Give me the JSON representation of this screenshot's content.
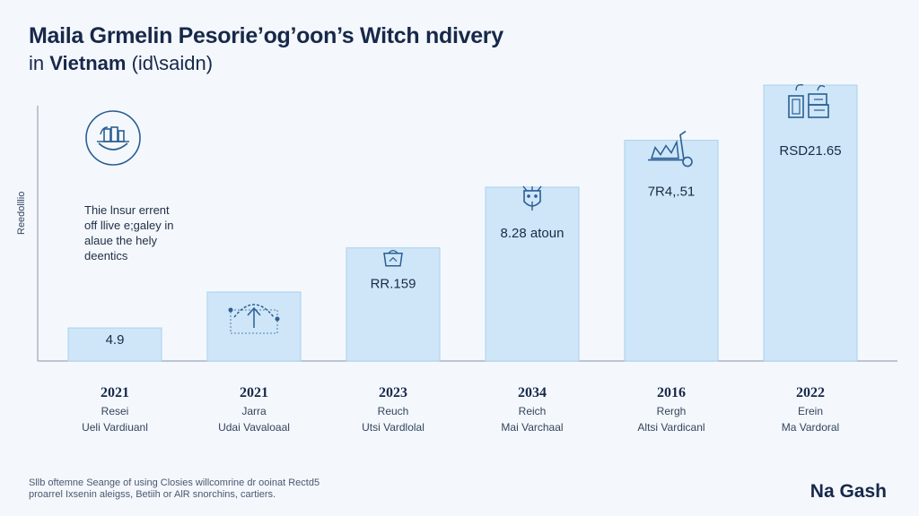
{
  "title": "Maila Grmelin Pesorie’og’oon’s Witch ndivery",
  "subtitle_prefix": "in",
  "subtitle_bold": "Vietnam",
  "subtitle_suffix": "(id\\saidn)",
  "ylabel": "Reedolllio",
  "annotation": {
    "icon": "basket-icon",
    "lines": [
      "Thie lnsur errent",
      "off llive e;galey in",
      "alaue the hely",
      "deentics"
    ]
  },
  "footnote": {
    "lines": [
      "Sllb oftemne Seange of using  Closies willcomrine dr ooinat Rectd5",
      "proarrel Ixsenin aleigss, Betiih or AlR snorchins, cartiers."
    ]
  },
  "brand": "Na Gash",
  "colors": {
    "bar_fill": "#cfe6f8",
    "bar_stroke": "#a9d0ee",
    "icon": "#2a5f93",
    "axis": "#9aa6b6"
  },
  "chart_data": {
    "type": "bar",
    "title": "Maila Grmelin Pesorie’og’oon’s Witch ndivery",
    "ylabel": "Reedolllio",
    "xlabel": "",
    "ylim": [
      0,
      10
    ],
    "grid": false,
    "categories": [
      "2021",
      "2021",
      "2023",
      "2034",
      "2016",
      "2022"
    ],
    "category_line1": [
      "Resei",
      "Jarra",
      "Reuch",
      "Reich",
      "Rergh",
      "Erein"
    ],
    "category_line2": [
      "Ueli Vardiuanl",
      "Udai Vavaloaal",
      "Utsi Vardlolal",
      "Mai Varchaal",
      "Altsi Vardicanl",
      "Ma Vardoral"
    ],
    "values": [
      1.2,
      2.5,
      4.1,
      6.3,
      8.0,
      10.0
    ],
    "value_labels": [
      "4.9",
      "",
      "RR.159",
      "8.28 atoun",
      "7R4,.51",
      "RSD21.65"
    ],
    "bar_icons": [
      "",
      "umbrella-icon",
      "cart-icon",
      "robot-icon",
      "scooter-icon",
      "delivery-boxes-icon"
    ]
  }
}
